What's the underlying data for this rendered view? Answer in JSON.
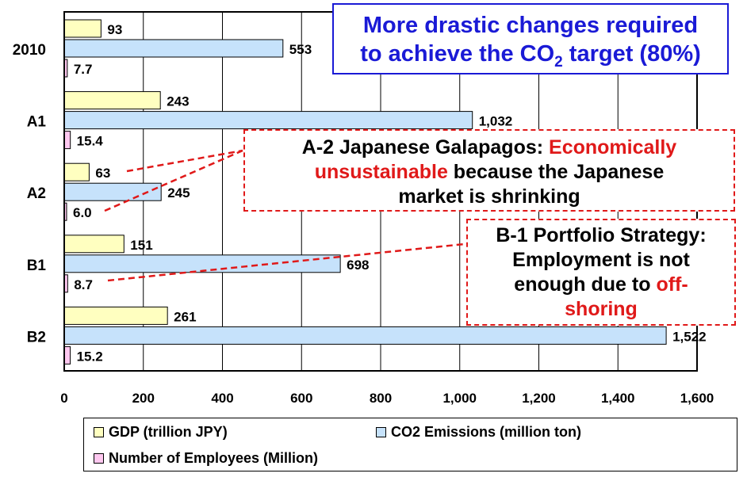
{
  "chart_data": {
    "type": "bar",
    "orientation": "horizontal",
    "categories": [
      "2010",
      "A1",
      "A2",
      "B1",
      "B2"
    ],
    "series": [
      {
        "name": "GDP (trillion JPY)",
        "color": "#ffffc0",
        "values": [
          93,
          243,
          63,
          151,
          261
        ],
        "labels": [
          "93",
          "243",
          "63",
          "151",
          "261"
        ]
      },
      {
        "name": "CO2 Emissions (million ton)",
        "color": "#c6e2fb",
        "values": [
          553,
          1032,
          245,
          698,
          1522
        ],
        "labels": [
          "553",
          "1,032",
          "245",
          "698",
          "1,522"
        ]
      },
      {
        "name": "Number of Employees (Million)",
        "color": "#ffc8f0",
        "values": [
          7.7,
          15.4,
          6.0,
          8.7,
          15.2
        ],
        "labels": [
          "7.7",
          "15.4",
          "6.0",
          "8.7",
          "15.2"
        ]
      }
    ],
    "xlim": [
      0,
      1600
    ],
    "ticks": [
      0,
      200,
      400,
      600,
      800,
      1000,
      1200,
      1400,
      1600
    ],
    "tick_labels": [
      "0",
      "200",
      "400",
      "600",
      "800",
      "1,000",
      "1,200",
      "1,400",
      "1,600"
    ],
    "grid": "vertical",
    "legend_position": "bottom"
  },
  "callouts": {
    "top": {
      "line1": "More drastic changes required",
      "line2_pre": "to achieve the CO",
      "line2_sub": "2",
      "line2_post": " target (80%)"
    },
    "a2": {
      "prefix": "A-2 Japanese Galapagos: ",
      "red1": "Economically",
      "red2": "unsustainable",
      "rest1": " because the Japanese",
      "rest2": "market is shrinking"
    },
    "b1": {
      "line1": "B-1 Portfolio Strategy:",
      "line2": "Employment is not",
      "line3_pre": "enough due to ",
      "line3_red": "off-",
      "line4_red": "shoring"
    }
  },
  "colors": {
    "callout_blue": "#1a1ad6",
    "callout_red": "#e01919",
    "dash_line": "#e01919"
  }
}
